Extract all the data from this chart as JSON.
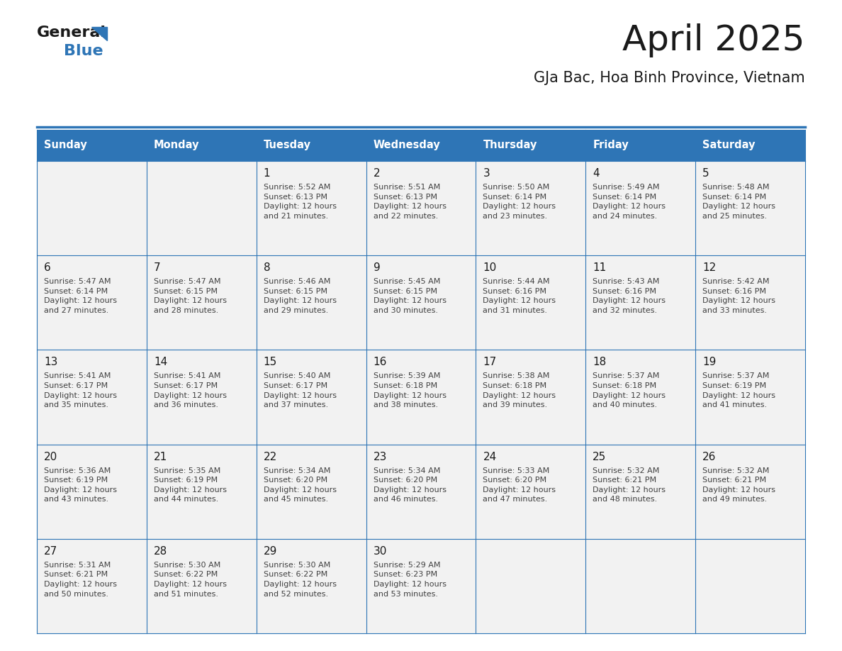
{
  "title": "April 2025",
  "subtitle": "GJa Bac, Hoa Binh Province, Vietnam",
  "header_color": "#2E75B6",
  "header_text_color": "#FFFFFF",
  "bg_color": "#FFFFFF",
  "cell_bg_color": "#F2F2F2",
  "day_names": [
    "Sunday",
    "Monday",
    "Tuesday",
    "Wednesday",
    "Thursday",
    "Friday",
    "Saturday"
  ],
  "title_color": "#1a1a1a",
  "subtitle_color": "#1a1a1a",
  "cell_text_color": "#404040",
  "date_number_color": "#1a1a1a",
  "grid_line_color": "#2E75B6",
  "logo_text_color": "#1a1a1a",
  "logo_blue_color": "#2E75B6",
  "days": [
    {
      "day": 1,
      "col": 2,
      "row": 0,
      "sunrise": "5:52 AM",
      "sunset": "6:13 PM",
      "daylight_min": 21
    },
    {
      "day": 2,
      "col": 3,
      "row": 0,
      "sunrise": "5:51 AM",
      "sunset": "6:13 PM",
      "daylight_min": 22
    },
    {
      "day": 3,
      "col": 4,
      "row": 0,
      "sunrise": "5:50 AM",
      "sunset": "6:14 PM",
      "daylight_min": 23
    },
    {
      "day": 4,
      "col": 5,
      "row": 0,
      "sunrise": "5:49 AM",
      "sunset": "6:14 PM",
      "daylight_min": 24
    },
    {
      "day": 5,
      "col": 6,
      "row": 0,
      "sunrise": "5:48 AM",
      "sunset": "6:14 PM",
      "daylight_min": 25
    },
    {
      "day": 6,
      "col": 0,
      "row": 1,
      "sunrise": "5:47 AM",
      "sunset": "6:14 PM",
      "daylight_min": 27
    },
    {
      "day": 7,
      "col": 1,
      "row": 1,
      "sunrise": "5:47 AM",
      "sunset": "6:15 PM",
      "daylight_min": 28
    },
    {
      "day": 8,
      "col": 2,
      "row": 1,
      "sunrise": "5:46 AM",
      "sunset": "6:15 PM",
      "daylight_min": 29
    },
    {
      "day": 9,
      "col": 3,
      "row": 1,
      "sunrise": "5:45 AM",
      "sunset": "6:15 PM",
      "daylight_min": 30
    },
    {
      "day": 10,
      "col": 4,
      "row": 1,
      "sunrise": "5:44 AM",
      "sunset": "6:16 PM",
      "daylight_min": 31
    },
    {
      "day": 11,
      "col": 5,
      "row": 1,
      "sunrise": "5:43 AM",
      "sunset": "6:16 PM",
      "daylight_min": 32
    },
    {
      "day": 12,
      "col": 6,
      "row": 1,
      "sunrise": "5:42 AM",
      "sunset": "6:16 PM",
      "daylight_min": 33
    },
    {
      "day": 13,
      "col": 0,
      "row": 2,
      "sunrise": "5:41 AM",
      "sunset": "6:17 PM",
      "daylight_min": 35
    },
    {
      "day": 14,
      "col": 1,
      "row": 2,
      "sunrise": "5:41 AM",
      "sunset": "6:17 PM",
      "daylight_min": 36
    },
    {
      "day": 15,
      "col": 2,
      "row": 2,
      "sunrise": "5:40 AM",
      "sunset": "6:17 PM",
      "daylight_min": 37
    },
    {
      "day": 16,
      "col": 3,
      "row": 2,
      "sunrise": "5:39 AM",
      "sunset": "6:18 PM",
      "daylight_min": 38
    },
    {
      "day": 17,
      "col": 4,
      "row": 2,
      "sunrise": "5:38 AM",
      "sunset": "6:18 PM",
      "daylight_min": 39
    },
    {
      "day": 18,
      "col": 5,
      "row": 2,
      "sunrise": "5:37 AM",
      "sunset": "6:18 PM",
      "daylight_min": 40
    },
    {
      "day": 19,
      "col": 6,
      "row": 2,
      "sunrise": "5:37 AM",
      "sunset": "6:19 PM",
      "daylight_min": 41
    },
    {
      "day": 20,
      "col": 0,
      "row": 3,
      "sunrise": "5:36 AM",
      "sunset": "6:19 PM",
      "daylight_min": 43
    },
    {
      "day": 21,
      "col": 1,
      "row": 3,
      "sunrise": "5:35 AM",
      "sunset": "6:19 PM",
      "daylight_min": 44
    },
    {
      "day": 22,
      "col": 2,
      "row": 3,
      "sunrise": "5:34 AM",
      "sunset": "6:20 PM",
      "daylight_min": 45
    },
    {
      "day": 23,
      "col": 3,
      "row": 3,
      "sunrise": "5:34 AM",
      "sunset": "6:20 PM",
      "daylight_min": 46
    },
    {
      "day": 24,
      "col": 4,
      "row": 3,
      "sunrise": "5:33 AM",
      "sunset": "6:20 PM",
      "daylight_min": 47
    },
    {
      "day": 25,
      "col": 5,
      "row": 3,
      "sunrise": "5:32 AM",
      "sunset": "6:21 PM",
      "daylight_min": 48
    },
    {
      "day": 26,
      "col": 6,
      "row": 3,
      "sunrise": "5:32 AM",
      "sunset": "6:21 PM",
      "daylight_min": 49
    },
    {
      "day": 27,
      "col": 0,
      "row": 4,
      "sunrise": "5:31 AM",
      "sunset": "6:21 PM",
      "daylight_min": 50
    },
    {
      "day": 28,
      "col": 1,
      "row": 4,
      "sunrise": "5:30 AM",
      "sunset": "6:22 PM",
      "daylight_min": 51
    },
    {
      "day": 29,
      "col": 2,
      "row": 4,
      "sunrise": "5:30 AM",
      "sunset": "6:22 PM",
      "daylight_min": 52
    },
    {
      "day": 30,
      "col": 3,
      "row": 4,
      "sunrise": "5:29 AM",
      "sunset": "6:23 PM",
      "daylight_min": 53
    }
  ]
}
